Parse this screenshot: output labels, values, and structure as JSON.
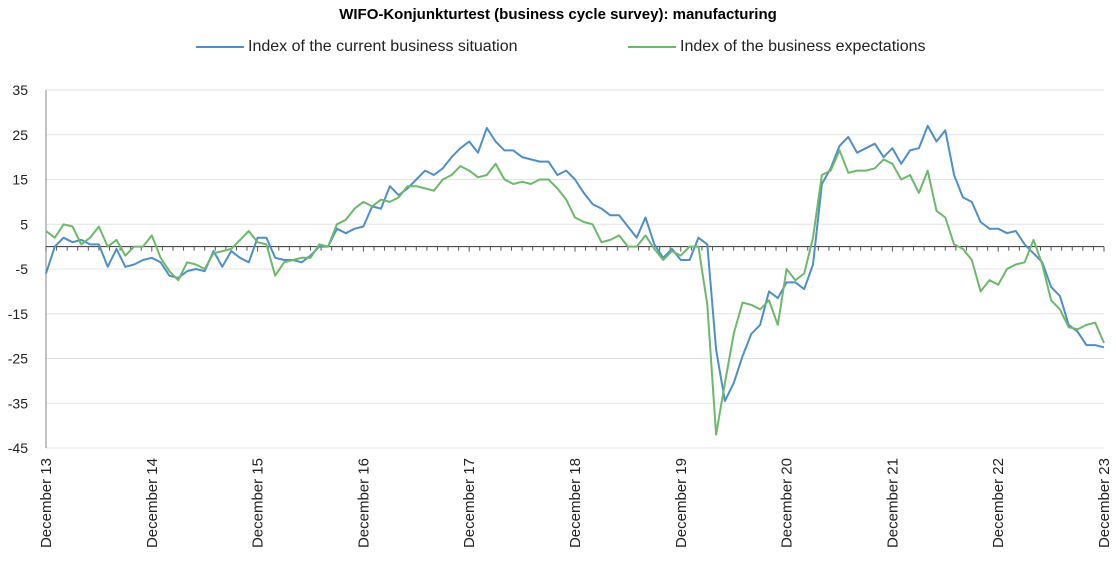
{
  "chart_data": {
    "type": "line",
    "title": "WIFO-Konjunkturtest (business cycle survey): manufacturing",
    "xlabel": "",
    "ylabel": "",
    "ylim": [
      -45,
      35
    ],
    "yticks": [
      35,
      25,
      15,
      5,
      -5,
      -15,
      -25,
      -35,
      -45
    ],
    "x_start": "December 13",
    "x_end": "December 23",
    "xtick_labels": [
      "December 13",
      "December 14",
      "December 15",
      "December 16",
      "December 17",
      "December 18",
      "December 19",
      "December 20",
      "December 21",
      "December 22",
      "December 23"
    ],
    "grid": "horizontal",
    "legend_position": "top",
    "series": [
      {
        "name": "Index of the current business situation",
        "color": "#4e8fc8",
        "values": [
          -6,
          0,
          2,
          1,
          1.5,
          0.5,
          0.5,
          -4.5,
          -0.5,
          -4.5,
          -4,
          -3,
          -2.5,
          -3.5,
          -6.5,
          -7,
          -5.5,
          -5,
          -5.5,
          -1,
          -4.5,
          -1,
          -2.5,
          -3.5,
          2,
          2,
          -2.5,
          -3,
          -3,
          -3.5,
          -2,
          0,
          0,
          4,
          3,
          4,
          4.5,
          9,
          8.5,
          13.5,
          11.5,
          13,
          15,
          17,
          16,
          17.5,
          20,
          22,
          23.5,
          21,
          26.5,
          23.5,
          21.5,
          21.5,
          20,
          19.5,
          19,
          19,
          16,
          17,
          15,
          12,
          9.5,
          8.5,
          7,
          7,
          4.5,
          2,
          6.5,
          0.5,
          -2.5,
          -0.5,
          -3,
          -3,
          2,
          0.5,
          -23,
          -34.5,
          -30.5,
          -24.5,
          -19.5,
          -17.5,
          -10,
          -11.5,
          -8,
          -8,
          -9.5,
          -4,
          14,
          17.5,
          22.5,
          24.5,
          21,
          22,
          23,
          20,
          22,
          18.5,
          21.5,
          22,
          27,
          23.5,
          26,
          16,
          11,
          10,
          5.5,
          4,
          4,
          3,
          3.5,
          0.5,
          -1.5,
          -3.5,
          -9,
          -11,
          -17.5,
          -19,
          -22,
          -22,
          -22.5
        ]
      },
      {
        "name": "Index of the business expectations",
        "color": "#6db86b",
        "values": [
          3.5,
          2,
          5,
          4.5,
          0.5,
          2,
          4.5,
          0,
          1.5,
          -2,
          0,
          0,
          2.5,
          -2.5,
          -5.5,
          -7.5,
          -3.5,
          -4,
          -5,
          -1.5,
          -1,
          -0.5,
          1.5,
          3.5,
          1,
          0.5,
          -6.5,
          -3.5,
          -3,
          -2.5,
          -2.5,
          0.5,
          0,
          5,
          6,
          8.5,
          10,
          9,
          10.5,
          10,
          11,
          13.5,
          13.5,
          13,
          12.5,
          15,
          16,
          18,
          17,
          15.5,
          16,
          18.5,
          15,
          14,
          14.5,
          14,
          15,
          15,
          13,
          10.5,
          6.5,
          5.5,
          5,
          1,
          1.5,
          2.5,
          0,
          0,
          2.5,
          -0.5,
          -3,
          -1,
          -2,
          0,
          0,
          -13,
          -42,
          -30.5,
          -19.5,
          -12.5,
          -13,
          -14,
          -12,
          -17.5,
          -5,
          -7.5,
          -6,
          2,
          16,
          17,
          21.5,
          16.5,
          17,
          17,
          17.5,
          19.5,
          18.5,
          15,
          16,
          12,
          17,
          8,
          6.5,
          0.5,
          -0.5,
          -3,
          -10,
          -7.5,
          -8.5,
          -5,
          -4,
          -3.5,
          1.5,
          -4,
          -12,
          -14,
          -18,
          -18.5,
          -17.5,
          -17,
          -21.5
        ]
      }
    ]
  }
}
